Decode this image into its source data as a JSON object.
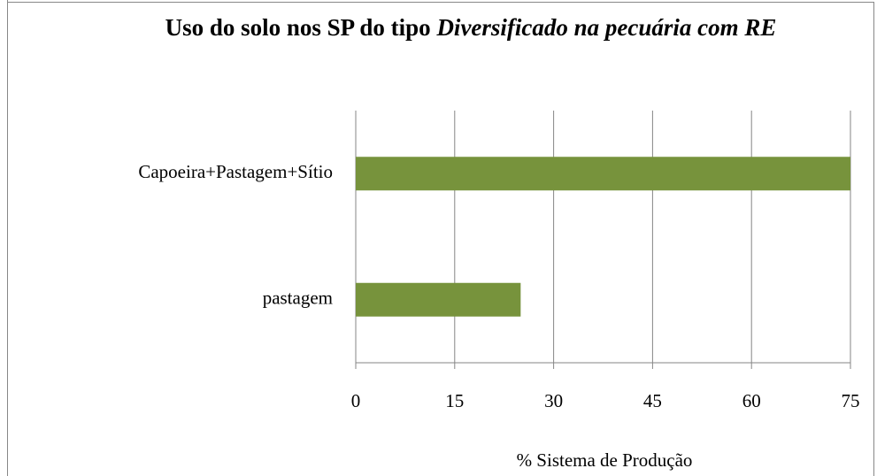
{
  "chart_data": {
    "type": "hbar",
    "title": {
      "plain": "Uso do solo nos SP do tipo",
      "italic": "Diversificado na pecuária com RE"
    },
    "categories": [
      "Capoeira+Pastagem+Sítio",
      "pastagem"
    ],
    "values": [
      75,
      25
    ],
    "color": "#77933c",
    "xlabel": "% Sistema de Produção",
    "xlim": [
      0,
      75
    ],
    "xticks": [
      0,
      15,
      30,
      45,
      60,
      75
    ],
    "grid": true
  }
}
